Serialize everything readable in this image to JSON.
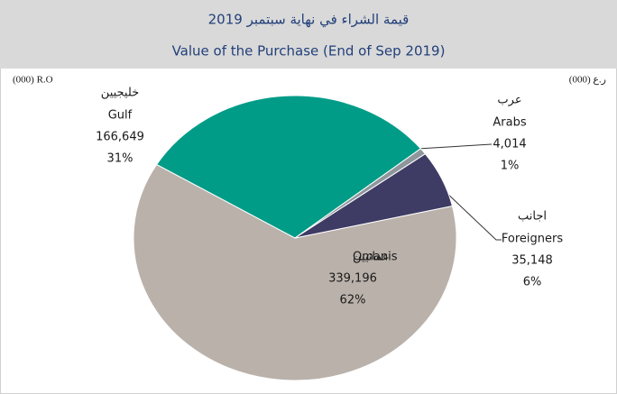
{
  "chart_data": {
    "type": "pie",
    "title": "قيمة الشراء في نهاية سبتمبر 2019",
    "subtitle": "Value of the Purchase (End of Sep 2019)",
    "unit_left": "(000) R.O",
    "unit_right": "(000) ر.ع",
    "categories": [
      "Omanis",
      "Gulf",
      "Arabs",
      "Foreigners"
    ],
    "categories_ar": [
      "عمانيين",
      "خليجيين",
      "عرب",
      "اجانب"
    ],
    "values": [
      339196,
      166649,
      4014,
      35148
    ],
    "value_labels": [
      "339,196",
      "166,649",
      "4,014",
      "35,148"
    ],
    "percent_labels": [
      "62%",
      "31%",
      "1%",
      "6%"
    ],
    "colors": [
      "#b9b1aa",
      "#009c87",
      "#8f979c",
      "#3e3b64"
    ]
  }
}
